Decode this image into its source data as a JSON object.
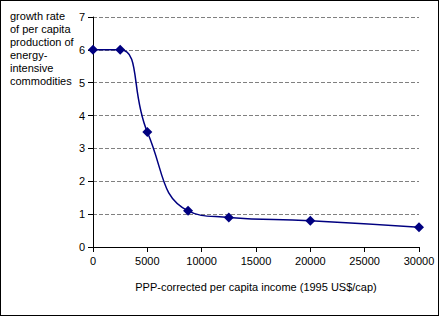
{
  "chart_data": {
    "type": "line",
    "ylabel": "growth rate\nof per capita\nproduction of\nenergy-\nintensive\ncommodities",
    "xlabel": "PPP-corrected per capita income (1995 US$/cap)",
    "x": [
      0,
      2500,
      5000,
      8750,
      12500,
      20000,
      30000
    ],
    "values": [
      6,
      6,
      3.5,
      1.1,
      0.9,
      0.8,
      0.6
    ],
    "color": "#000080",
    "marker": "diamond",
    "line_style": "smooth",
    "xlim": [
      0,
      30000
    ],
    "xticks": [
      0,
      5000,
      10000,
      15000,
      20000,
      25000,
      30000
    ],
    "ylim": [
      0,
      7
    ],
    "yticks": [
      0,
      1,
      2,
      3,
      4,
      5,
      6,
      7
    ],
    "grid": true
  }
}
